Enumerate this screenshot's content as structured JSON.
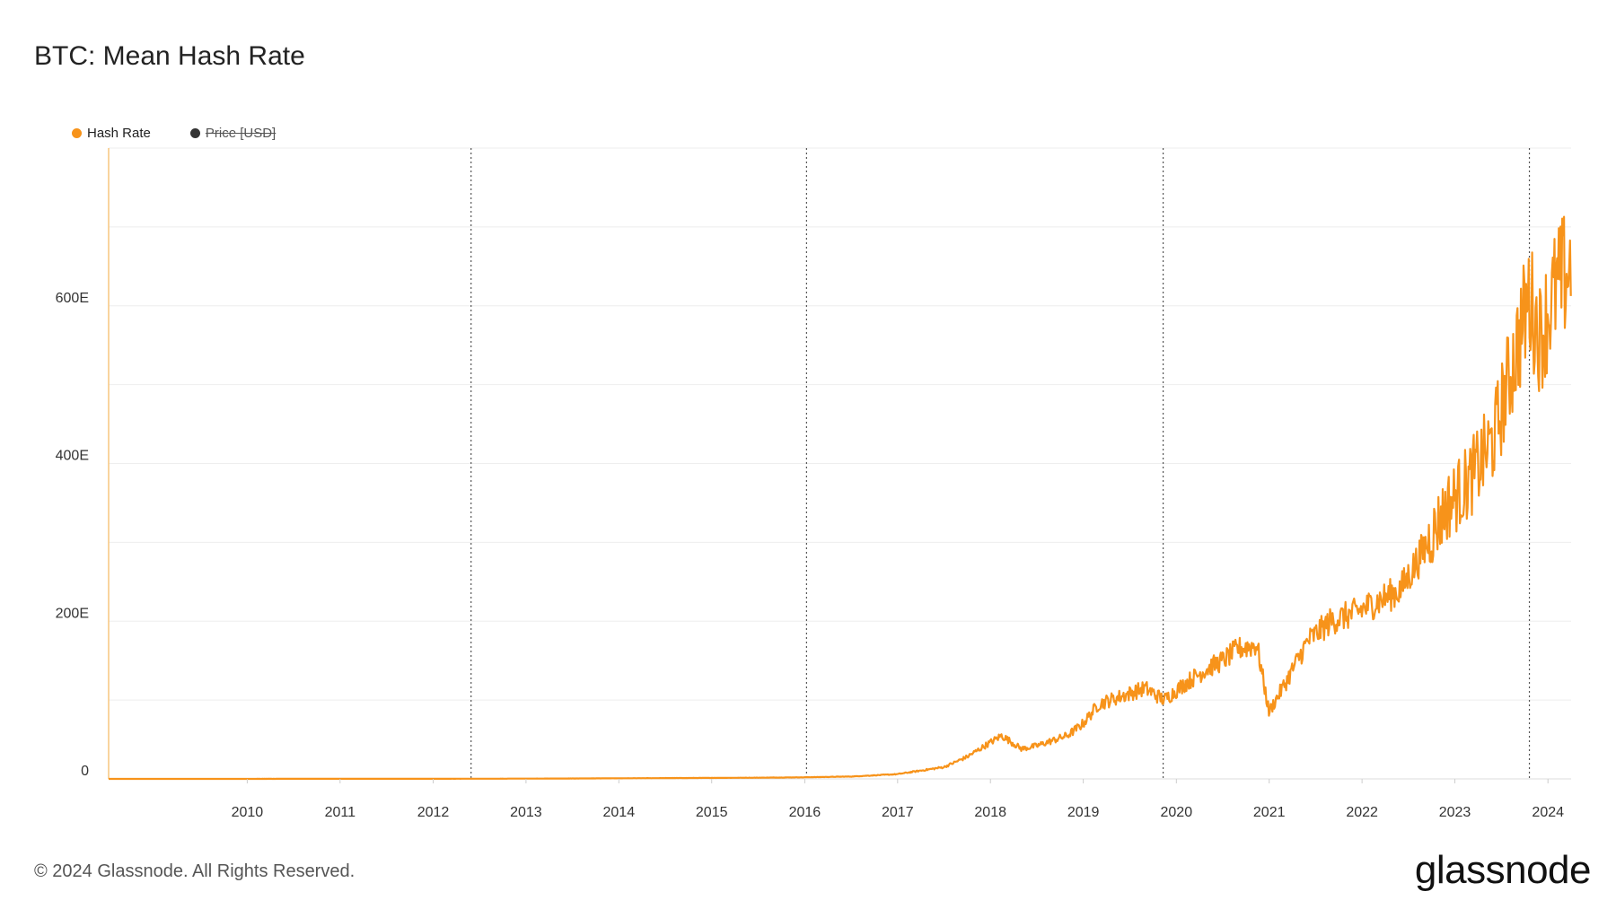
{
  "title": "BTC: Mean Hash Rate",
  "legend": {
    "hash_rate_label": "Hash Rate",
    "price_label": "Price [USD]"
  },
  "footer": {
    "copyright": "© 2024 Glassnode. All Rights Reserved.",
    "brand": "glassnode"
  },
  "colors": {
    "hash_rate": "#f7931a",
    "price": "#333333",
    "grid": "#eeeeee",
    "halving_line": "#555555",
    "axis": "#f7c67f"
  },
  "chart_data": {
    "type": "line",
    "title": "BTC: Mean Hash Rate",
    "xlabel": "",
    "ylabel": "",
    "y_unit": "EH/s",
    "xlim": [
      "2009-01-03",
      "2024-10-01"
    ],
    "ylim": [
      0,
      800
    ],
    "y_ticks": [
      0,
      200,
      400,
      600
    ],
    "y_tick_labels": [
      "0",
      "200E",
      "400E",
      "600E"
    ],
    "x_ticks": [
      "2010",
      "2011",
      "2012",
      "2013",
      "2014",
      "2015",
      "2016",
      "2017",
      "2018",
      "2019",
      "2020",
      "2021",
      "2022",
      "2023",
      "2024"
    ],
    "grid": true,
    "legend_position": "top-left",
    "halving_dates": [
      "2012-11-28",
      "2016-07-09",
      "2020-05-11",
      "2024-04-20"
    ],
    "series": [
      {
        "name": "Hash Rate",
        "visible": true,
        "color": "#f7931a",
        "x": [
          "2009-01-03",
          "2012-01-01",
          "2013-01-01",
          "2014-01-01",
          "2015-01-01",
          "2016-01-01",
          "2016-07-01",
          "2017-01-01",
          "2017-07-01",
          "2018-01-01",
          "2018-04-01",
          "2018-08-15",
          "2018-11-01",
          "2019-01-01",
          "2019-05-01",
          "2019-07-01",
          "2019-09-01",
          "2019-12-01",
          "2020-03-01",
          "2020-05-15",
          "2020-08-01",
          "2020-11-01",
          "2021-01-01",
          "2021-03-01",
          "2021-05-15",
          "2021-07-01",
          "2021-09-01",
          "2021-12-01",
          "2022-03-01",
          "2022-06-01",
          "2022-09-01",
          "2022-12-01",
          "2023-03-01",
          "2023-06-01",
          "2023-09-01",
          "2023-12-01",
          "2024-02-01",
          "2024-04-20",
          "2024-06-01",
          "2024-08-01",
          "2024-09-30"
        ],
        "values": [
          0,
          0.1,
          0.2,
          0.5,
          1,
          1.5,
          2,
          3,
          6,
          15,
          28,
          55,
          38,
          42,
          55,
          70,
          95,
          105,
          115,
          100,
          120,
          140,
          150,
          165,
          170,
          85,
          120,
          175,
          200,
          210,
          225,
          240,
          290,
          345,
          380,
          430,
          510,
          610,
          560,
          620,
          650
        ]
      },
      {
        "name": "Price [USD]",
        "visible": false,
        "color": "#333333",
        "values": []
      }
    ]
  }
}
